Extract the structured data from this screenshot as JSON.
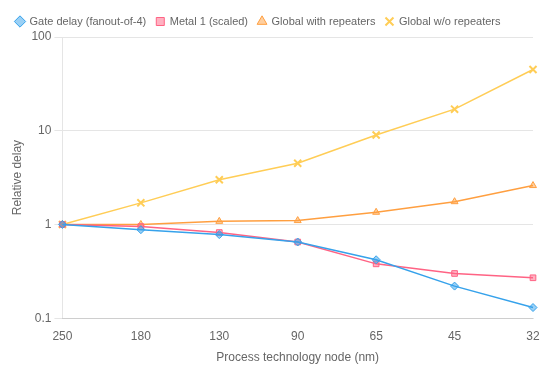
{
  "chart_data": {
    "type": "line",
    "x_label": "Process technology node (nm)",
    "y_label": "Relative delay",
    "categories": [
      "250",
      "180",
      "130",
      "90",
      "65",
      "45",
      "32"
    ],
    "series": [
      {
        "name": "Gate delay (fanout-of-4)",
        "marker": "diamond",
        "values": [
          1.0,
          0.88,
          0.78,
          0.65,
          0.42,
          0.22,
          0.13
        ]
      },
      {
        "name": "Metal 1 (scaled)",
        "marker": "square",
        "values": [
          1.0,
          0.95,
          0.82,
          0.65,
          0.38,
          0.3,
          0.27
        ]
      },
      {
        "name": "Global with repeaters",
        "marker": "triangle",
        "values": [
          1.0,
          1.0,
          1.08,
          1.1,
          1.35,
          1.75,
          2.6
        ]
      },
      {
        "name": "Global w/o repeaters",
        "marker": "x",
        "values": [
          1.0,
          1.7,
          3.0,
          4.5,
          9.0,
          17.0,
          45.0
        ]
      }
    ],
    "log": "y",
    "ylim": [
      0.1,
      100
    ],
    "yticks": [
      0.1,
      1,
      10,
      100
    ],
    "grid": "y",
    "legend": "upper left"
  }
}
